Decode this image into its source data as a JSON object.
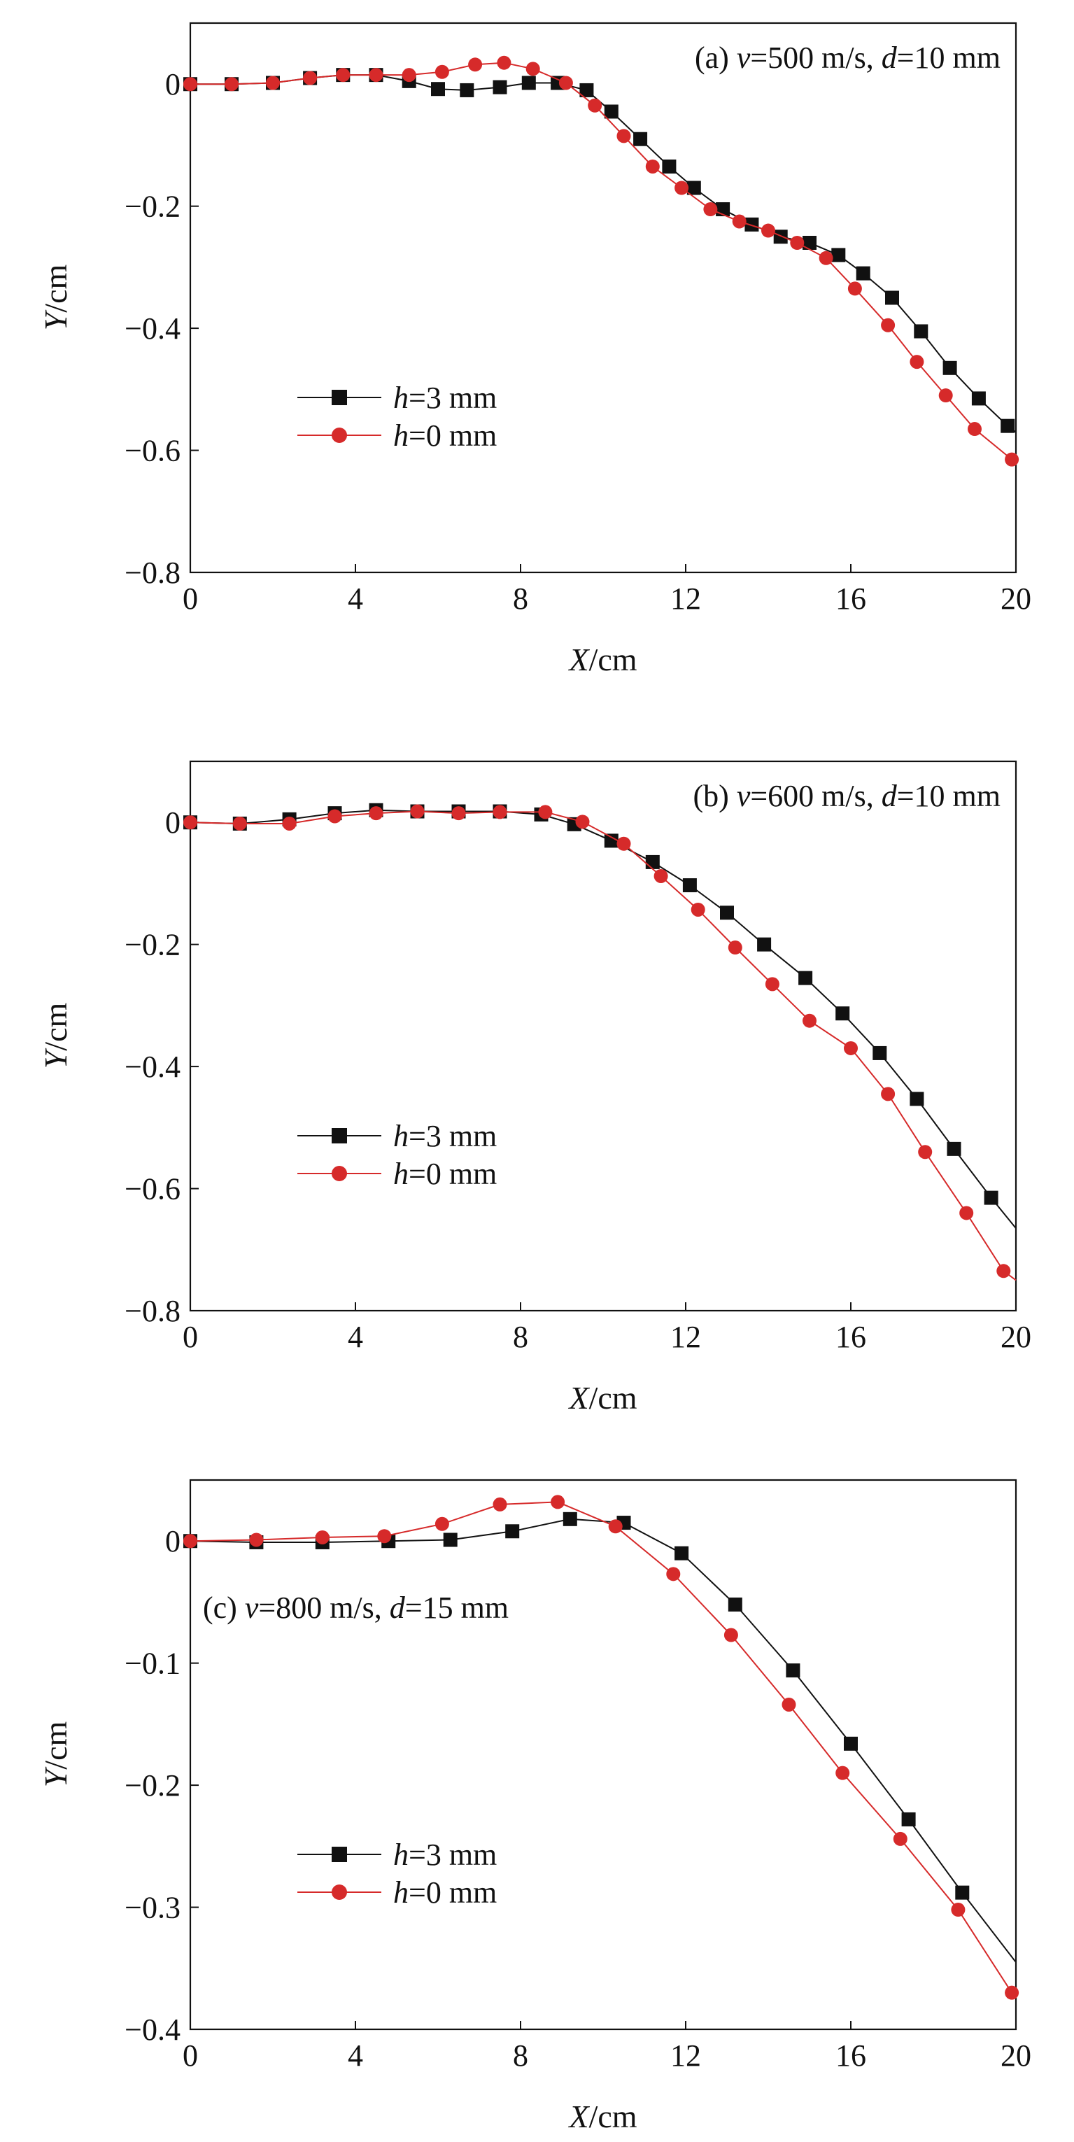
{
  "chart_data": [
    {
      "type": "line",
      "panel": "(a)",
      "title": {
        "prefix": "(a) ",
        "v_sym": "v",
        "v_val": "=500 m/s, ",
        "d_sym": "d",
        "d_val": "=10 mm"
      },
      "xlabel": {
        "sym": "X",
        "unit": "/cm"
      },
      "ylabel": {
        "sym": "Y",
        "unit": "/cm"
      },
      "xlim": [
        0,
        20
      ],
      "ylim": [
        -0.8,
        0.1
      ],
      "xticks": [
        0,
        4,
        8,
        12,
        16,
        20
      ],
      "xtick_labels": [
        "0",
        "4",
        "8",
        "12",
        "16",
        "20"
      ],
      "yticks": [
        0,
        -0.2,
        -0.4,
        -0.6,
        -0.8
      ],
      "ytick_labels": [
        "0",
        "−0.2",
        "−0.4",
        "−0.6",
        "−0.8"
      ],
      "legend_position": "center-left",
      "series": [
        {
          "name": "h=3 mm",
          "label_sym": "h",
          "label_val": "=3 mm",
          "color": "#111111",
          "marker": "square",
          "x": [
            0,
            1,
            2,
            2.9,
            3.7,
            4.5,
            5.3,
            6,
            6.7,
            7.5,
            8.2,
            8.9,
            9.6,
            10.2,
            10.9,
            11.6,
            12.2,
            12.9,
            13.6,
            14.3,
            15,
            15.7,
            16.3,
            17,
            17.7,
            18.4,
            19.1,
            19.8,
            20
          ],
          "y": [
            0,
            0,
            0.002,
            0.01,
            0.015,
            0.015,
            0.005,
            -0.008,
            -0.01,
            -0.005,
            0.002,
            0.002,
            -0.01,
            -0.045,
            -0.09,
            -0.135,
            -0.17,
            -0.205,
            -0.23,
            -0.25,
            -0.26,
            -0.28,
            -0.31,
            -0.35,
            -0.405,
            -0.465,
            -0.515,
            -0.56,
            -0.57
          ]
        },
        {
          "name": "h=0 mm",
          "label_sym": "h",
          "label_val": "=0 mm",
          "color": "#d62a2a",
          "marker": "circle",
          "x": [
            0,
            1,
            2,
            2.9,
            3.7,
            4.5,
            5.3,
            6.1,
            6.9,
            7.6,
            8.3,
            9.1,
            9.8,
            10.5,
            11.2,
            11.9,
            12.6,
            13.3,
            14,
            14.7,
            15.4,
            16.1,
            16.9,
            17.6,
            18.3,
            19,
            19.9
          ],
          "y": [
            0,
            0,
            0.002,
            0.01,
            0.015,
            0.015,
            0.015,
            0.02,
            0.032,
            0.035,
            0.025,
            0.002,
            -0.035,
            -0.085,
            -0.135,
            -0.17,
            -0.205,
            -0.225,
            -0.24,
            -0.26,
            -0.285,
            -0.335,
            -0.395,
            -0.455,
            -0.51,
            -0.565,
            -0.615
          ]
        }
      ]
    },
    {
      "type": "line",
      "panel": "(b)",
      "title": {
        "prefix": "(b) ",
        "v_sym": "v",
        "v_val": "=600 m/s, ",
        "d_sym": "d",
        "d_val": "=10 mm"
      },
      "xlabel": {
        "sym": "X",
        "unit": "/cm"
      },
      "ylabel": {
        "sym": "Y",
        "unit": "/cm"
      },
      "xlim": [
        0,
        20
      ],
      "ylim": [
        -0.8,
        0.1
      ],
      "xticks": [
        0,
        4,
        8,
        12,
        16,
        20
      ],
      "xtick_labels": [
        "0",
        "4",
        "8",
        "12",
        "16",
        "20"
      ],
      "yticks": [
        0,
        -0.2,
        -0.4,
        -0.6,
        -0.8
      ],
      "ytick_labels": [
        "0",
        "−0.2",
        "−0.4",
        "−0.6",
        "−0.8"
      ],
      "legend_position": "center-left",
      "series": [
        {
          "name": "h=3 mm",
          "label_sym": "h",
          "label_val": "=3 mm",
          "color": "#111111",
          "marker": "square",
          "x": [
            0,
            1.2,
            2.4,
            3.5,
            4.5,
            5.5,
            6.5,
            7.5,
            8.5,
            9.3,
            10.2,
            11.2,
            12.1,
            13,
            13.9,
            14.9,
            15.8,
            16.7,
            17.6,
            18.5,
            19.4,
            20
          ],
          "y": [
            0,
            -0.002,
            0.005,
            0.015,
            0.02,
            0.018,
            0.018,
            0.018,
            0.013,
            -0.003,
            -0.03,
            -0.065,
            -0.103,
            -0.148,
            -0.2,
            -0.255,
            -0.313,
            -0.378,
            -0.453,
            -0.535,
            -0.615,
            -0.665
          ]
        },
        {
          "name": "h=0 mm",
          "label_sym": "h",
          "label_val": "=0 mm",
          "color": "#d62a2a",
          "marker": "circle",
          "x": [
            0,
            1.2,
            2.4,
            3.5,
            4.5,
            5.5,
            6.5,
            7.5,
            8.6,
            9.5,
            10.5,
            11.4,
            12.3,
            13.2,
            14.1,
            15,
            16,
            16.9,
            17.8,
            18.8,
            19.7,
            20
          ],
          "y": [
            0,
            -0.002,
            -0.002,
            0.01,
            0.015,
            0.018,
            0.015,
            0.017,
            0.017,
            0.001,
            -0.035,
            -0.088,
            -0.143,
            -0.205,
            -0.265,
            -0.325,
            -0.37,
            -0.445,
            -0.54,
            -0.64,
            -0.735,
            -0.75
          ]
        }
      ]
    },
    {
      "type": "line",
      "panel": "(c)",
      "title": {
        "prefix": "(c) ",
        "v_sym": "v",
        "v_val": "=800 m/s, ",
        "d_sym": "d",
        "d_val": "=15 mm"
      },
      "xlabel": {
        "sym": "X",
        "unit": "/cm"
      },
      "ylabel": {
        "sym": "Y",
        "unit": "/cm"
      },
      "xlim": [
        0,
        20
      ],
      "ylim": [
        -0.4,
        0.05
      ],
      "xticks": [
        0,
        4,
        8,
        12,
        16,
        20
      ],
      "xtick_labels": [
        "0",
        "4",
        "8",
        "12",
        "16",
        "20"
      ],
      "yticks": [
        0,
        -0.1,
        -0.2,
        -0.3,
        -0.4
      ],
      "ytick_labels": [
        "0",
        "−0.1",
        "−0.2",
        "−0.3",
        "−0.4"
      ],
      "legend_position": "bottom-left",
      "series": [
        {
          "name": "h=3 mm",
          "label_sym": "h",
          "label_val": "=3 mm",
          "color": "#111111",
          "marker": "square",
          "x": [
            0,
            1.6,
            3.2,
            4.8,
            6.3,
            7.8,
            9.2,
            10.5,
            11.9,
            13.2,
            14.6,
            16,
            17.4,
            18.7,
            20
          ],
          "y": [
            0,
            -0.001,
            -0.001,
            0,
            0.001,
            0.008,
            0.018,
            0.015,
            -0.01,
            -0.052,
            -0.106,
            -0.166,
            -0.228,
            -0.288,
            -0.345
          ]
        },
        {
          "name": "h=0 mm",
          "label_sym": "h",
          "label_val": "=0 mm",
          "color": "#d62a2a",
          "marker": "circle",
          "x": [
            0,
            1.6,
            3.2,
            4.7,
            6.1,
            7.5,
            8.9,
            10.3,
            11.7,
            13.1,
            14.5,
            15.8,
            17.2,
            18.6,
            19.9
          ],
          "y": [
            0,
            0.001,
            0.003,
            0.004,
            0.014,
            0.03,
            0.032,
            0.012,
            -0.027,
            -0.077,
            -0.134,
            -0.19,
            -0.244,
            -0.302,
            -0.37
          ]
        }
      ]
    }
  ]
}
